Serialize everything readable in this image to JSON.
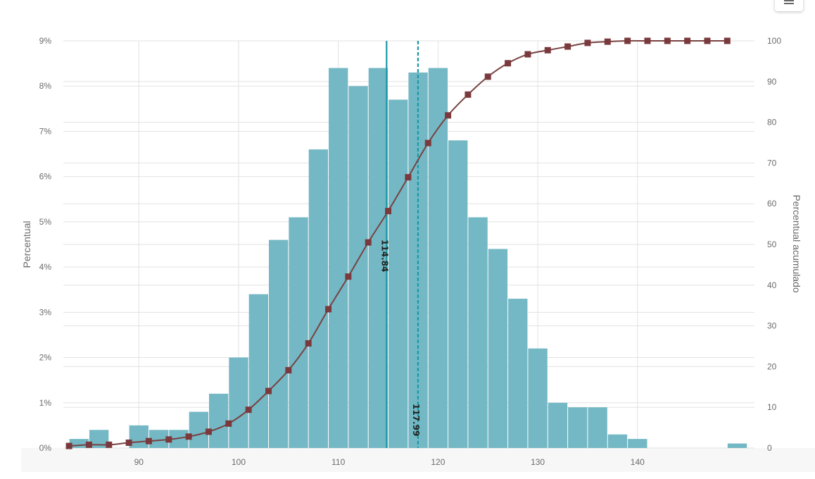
{
  "menu": {
    "icon": "hamburger-menu-icon"
  },
  "colors": {
    "bar": "#73b8c4",
    "cumulative_line": "#7a4141",
    "cumulative_marker": "#7a3a3d",
    "reference_line": "#1a9aa6",
    "grid": "#e2e2e2"
  },
  "chart_data": {
    "type": "bar",
    "xlabel": "",
    "ylabel": "Percentual",
    "y2label": "Percentual acumulado",
    "xlim": [
      82.5,
      150
    ],
    "ylim": [
      0,
      9
    ],
    "y2lim": [
      0,
      100
    ],
    "x_ticks": [
      "90",
      "100",
      "110",
      "120",
      "130",
      "140"
    ],
    "y_ticks": [
      "0%",
      "1%",
      "2%",
      "3%",
      "4%",
      "5%",
      "6%",
      "7%",
      "8%",
      "9%"
    ],
    "y2_ticks": [
      "0",
      "10",
      "20",
      "30",
      "40",
      "50",
      "60",
      "70",
      "80",
      "90",
      "100"
    ],
    "grid": true,
    "bin_width": 2,
    "histogram": {
      "bin_start": [
        83,
        85,
        87,
        89,
        91,
        93,
        95,
        97,
        99,
        101,
        103,
        105,
        107,
        109,
        111,
        113,
        115,
        117,
        119,
        121,
        123,
        125,
        127,
        129,
        131,
        133,
        135,
        137,
        139,
        141,
        143,
        145,
        147,
        149
      ],
      "values": [
        0.2,
        0.4,
        0.0,
        0.5,
        0.4,
        0.4,
        0.8,
        1.2,
        2.0,
        3.4,
        4.6,
        5.1,
        6.6,
        8.4,
        8.0,
        8.4,
        7.7,
        8.3,
        8.4,
        6.8,
        5.1,
        4.4,
        3.3,
        2.2,
        1.0,
        0.9,
        0.9,
        0.3,
        0.2,
        0.0,
        0.0,
        0.0,
        0.0,
        0.1
      ]
    },
    "cumulative": {
      "x": [
        83,
        85,
        87,
        89,
        91,
        93,
        95,
        97,
        99,
        101,
        103,
        105,
        107,
        109,
        111,
        113,
        115,
        117,
        119,
        121,
        123,
        125,
        127,
        129,
        131,
        133,
        135,
        137,
        139,
        141,
        143,
        145,
        147,
        149
      ],
      "values": [
        0.5,
        0.8,
        0.8,
        1.3,
        1.7,
        2.1,
        2.8,
        4.0,
        6.0,
        9.4,
        14.0,
        19.1,
        25.7,
        34.1,
        42.1,
        50.5,
        58.2,
        66.5,
        74.9,
        81.7,
        86.8,
        91.2,
        94.5,
        96.7,
        97.7,
        98.6,
        99.5,
        99.8,
        100,
        100,
        100,
        100,
        100,
        100
      ]
    },
    "reference_lines": [
      {
        "x": 114.84,
        "label": "114.84",
        "style": "solid"
      },
      {
        "x": 117.99,
        "label": "117.99",
        "style": "dashed"
      }
    ]
  }
}
